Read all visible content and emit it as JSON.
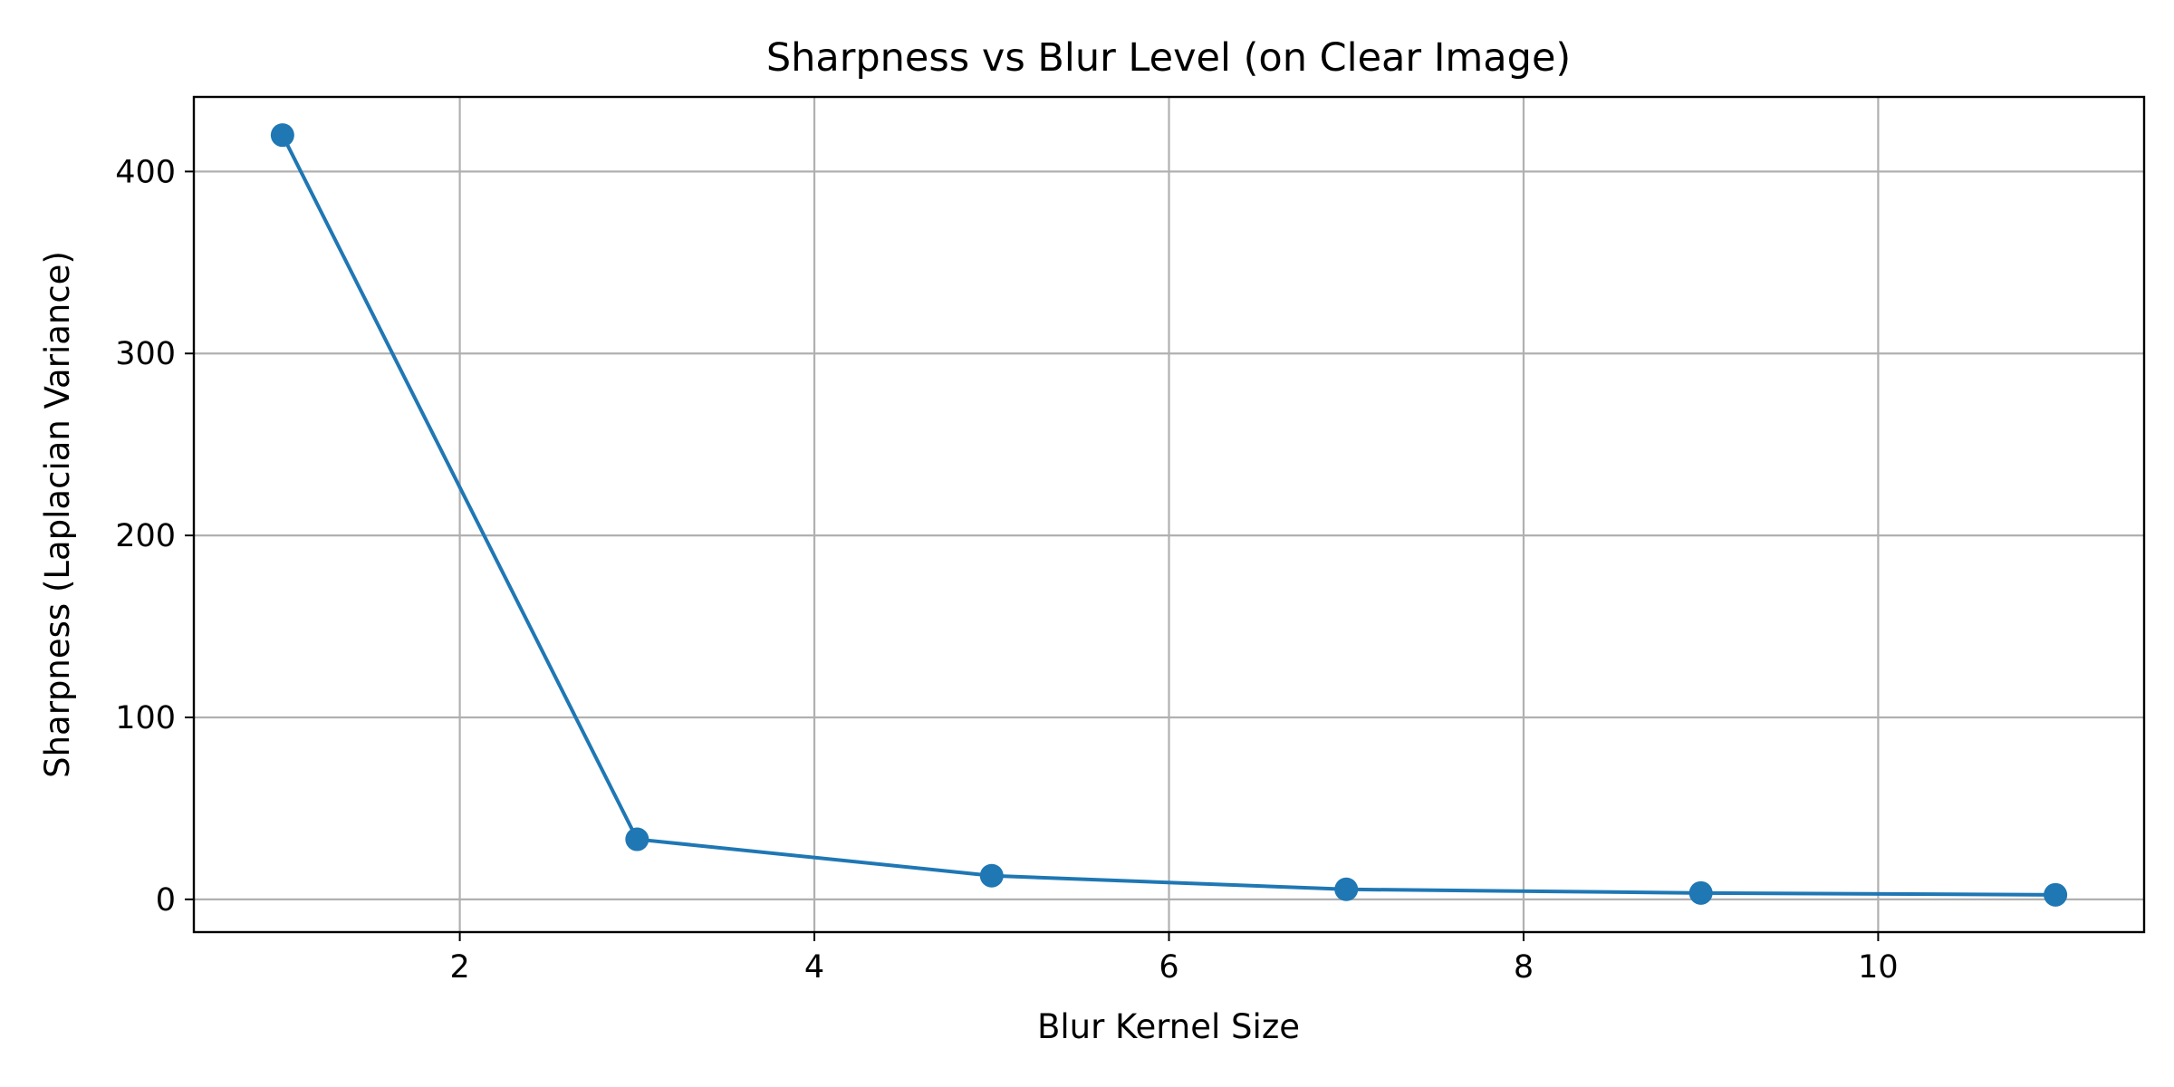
{
  "chart_data": {
    "type": "line",
    "title": "Sharpness vs Blur Level (on Clear Image)",
    "xlabel": "Blur Kernel Size",
    "ylabel": "Sharpness (Laplacian Variance)",
    "x": [
      1,
      3,
      5,
      7,
      9,
      11
    ],
    "series": [
      {
        "values": [
          420,
          33,
          13,
          5.5,
          3.5,
          2.5
        ],
        "color": "#1f77b4",
        "marker": "circle"
      }
    ],
    "xlim": [
      0.5,
      11.5
    ],
    "ylim": [
      -18,
      441
    ],
    "xticks": [
      2,
      4,
      6,
      8,
      10
    ],
    "yticks": [
      0,
      100,
      200,
      300,
      400
    ],
    "grid": true,
    "legend": "none"
  }
}
